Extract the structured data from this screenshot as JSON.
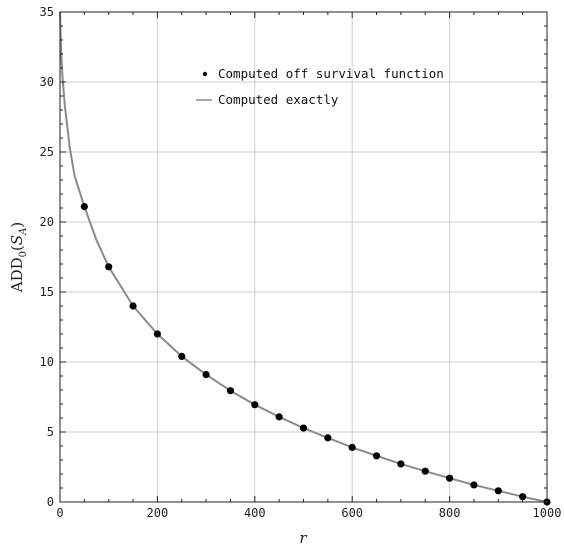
{
  "chart_data": {
    "type": "line",
    "xlabel": "r",
    "ylabel_main": "ADD",
    "ylabel_sub": "0",
    "ylabel_arg_open": "(",
    "ylabel_arg": "S",
    "ylabel_arg_sub": "A",
    "ylabel_arg_close": ")",
    "xlim": [
      0,
      1000
    ],
    "ylim": [
      0,
      35
    ],
    "x_ticks": [
      0,
      200,
      400,
      600,
      800,
      1000
    ],
    "y_ticks": [
      0,
      5,
      10,
      15,
      20,
      25,
      30,
      35
    ],
    "grid": true,
    "legend_position": "top-right",
    "series": [
      {
        "name": "Computed off survival function",
        "kind": "scatter",
        "color": "#000000",
        "x": [
          50,
          100,
          150,
          200,
          250,
          300,
          350,
          400,
          450,
          500,
          550,
          600,
          650,
          700,
          750,
          800,
          850,
          900,
          950,
          1000
        ],
        "y": [
          21.1,
          16.8,
          14.0,
          12.0,
          10.4,
          9.1,
          7.95,
          6.95,
          6.08,
          5.28,
          4.58,
          3.9,
          3.3,
          2.72,
          2.2,
          1.7,
          1.22,
          0.8,
          0.38,
          0.0
        ]
      },
      {
        "name": "Computed exactly",
        "kind": "line",
        "color": "#8a8a8a",
        "x": [
          0,
          2,
          5,
          10,
          20,
          30,
          50,
          75,
          100,
          150,
          200,
          250,
          300,
          350,
          400,
          450,
          500,
          550,
          600,
          650,
          700,
          750,
          800,
          850,
          900,
          950,
          1000
        ],
        "y": [
          35,
          32.5,
          30.4,
          28.3,
          25.3,
          23.3,
          21.1,
          18.7,
          16.8,
          14.0,
          12.0,
          10.4,
          9.1,
          7.95,
          6.95,
          6.08,
          5.28,
          4.58,
          3.9,
          3.3,
          2.72,
          2.2,
          1.7,
          1.22,
          0.8,
          0.38,
          0.0
        ]
      }
    ]
  }
}
